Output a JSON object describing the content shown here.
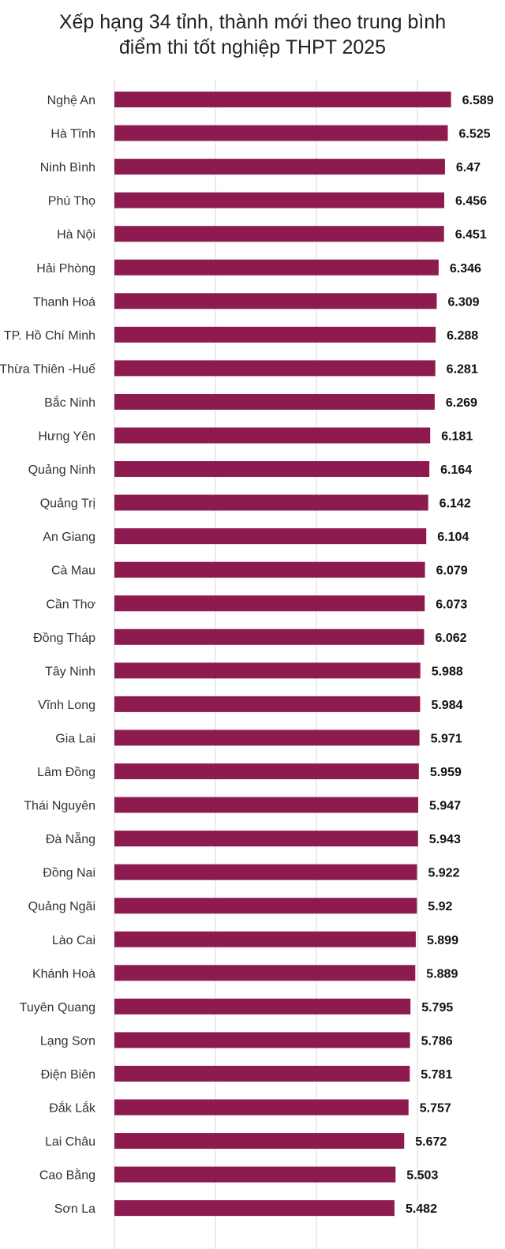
{
  "chart_data": {
    "type": "bar",
    "orientation": "horizontal",
    "title": "Xếp hạng 34 tỉnh, thành mới theo trung bình điểm thi tốt nghiệp THPT 2025",
    "title_lines": [
      "Xếp hạng 34 tỉnh, thành mới theo trung bình",
      "điểm thi tốt nghiệp THPT 2025"
    ],
    "categories": [
      "Nghệ An",
      "Hà Tĩnh",
      "Ninh Bình",
      "Phú Thọ",
      "Hà Nội",
      "Hải Phòng",
      "Thanh Hoá",
      "TP. Hồ Chí Minh",
      "Thừa Thiên -Huế",
      "Bắc Ninh",
      "Hưng Yên",
      "Quảng Ninh",
      "Quảng Trị",
      "An Giang",
      "Cà Mau",
      "Cần Thơ",
      "Đồng Tháp",
      "Tây Ninh",
      "Vĩnh Long",
      "Gia Lai",
      "Lâm Đồng",
      "Thái Nguyên",
      "Đà Nẵng",
      "Đồng Nai",
      "Quảng Ngãi",
      "Lào Cai",
      "Khánh Hoà",
      "Tuyên Quang",
      "Lạng Sơn",
      "Điện Biên",
      "Đắk Lắk",
      "Lai Châu",
      "Cao Bằng",
      "Sơn La"
    ],
    "value_labels": [
      "6.589",
      "6.525",
      "6.47",
      "6.456",
      "6.451",
      "6.346",
      "6.309",
      "6.288",
      "6.281",
      "6.269",
      "6.181",
      "6.164",
      "6.142",
      "6.104",
      "6.079",
      "6.073",
      "6.062",
      "5.988",
      "5.984",
      "5.971",
      "5.959",
      "5.947",
      "5.943",
      "5.922",
      "5.92",
      "5.899",
      "5.889",
      "5.795",
      "5.786",
      "5.781",
      "5.757",
      "5.672",
      "5.503",
      "5.482"
    ],
    "values": [
      6.589,
      6.525,
      6.47,
      6.456,
      6.451,
      6.346,
      6.309,
      6.288,
      6.281,
      6.269,
      6.181,
      6.164,
      6.142,
      6.104,
      6.079,
      6.073,
      6.062,
      5.988,
      5.984,
      5.971,
      5.959,
      5.947,
      5.943,
      5.922,
      5.92,
      5.899,
      5.889,
      5.795,
      5.786,
      5.781,
      5.757,
      5.672,
      5.503,
      5.482
    ],
    "xlim": [
      0,
      6.95
    ],
    "xlabel": "",
    "ylabel": "",
    "grid": true,
    "bar_color": "#8e1b4f",
    "grid_color": "#d9d9d9",
    "label_color": "#333333",
    "value_color": "#111111"
  }
}
